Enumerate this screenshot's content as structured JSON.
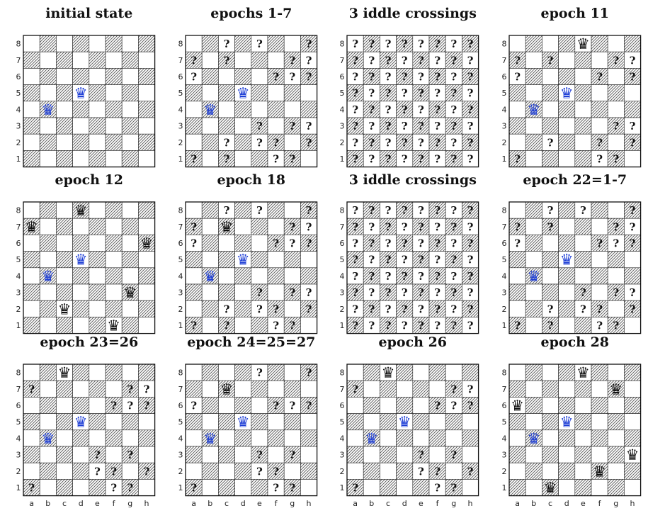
{
  "colors": {
    "given_queen": "#1f3fd6",
    "placed_queen": "#111111",
    "dark_square_hatch": "#555555",
    "border": "#111111"
  },
  "files": [
    "a",
    "b",
    "c",
    "d",
    "e",
    "f",
    "g",
    "h"
  ],
  "ranks": [
    "1",
    "2",
    "3",
    "4",
    "5",
    "6",
    "7",
    "8"
  ],
  "queen_glyph": "♛",
  "question_glyph": "?",
  "given_queens": [
    "b4",
    "d5"
  ],
  "panels": [
    {
      "title": "initial state",
      "placed_queens": [],
      "unknown": [],
      "all_unknown": false
    },
    {
      "title": "epochs 1-7",
      "placed_queens": [],
      "unknown": [
        "c8",
        "e8",
        "h8",
        "a7",
        "c7",
        "g7",
        "h7",
        "a6",
        "f6",
        "g6",
        "h6",
        "e3",
        "g3",
        "h3",
        "c2",
        "e2",
        "f2",
        "h2",
        "a1",
        "c1",
        "f1",
        "g1"
      ],
      "all_unknown": false
    },
    {
      "title": "3 iddle crossings",
      "placed_queens": [],
      "unknown": [],
      "all_unknown": true
    },
    {
      "title": "epoch 11",
      "placed_queens": [
        "e8"
      ],
      "unknown": [
        "a7",
        "c7",
        "g7",
        "h7",
        "a6",
        "f6",
        "h6",
        "g3",
        "h3",
        "c2",
        "f2",
        "h2",
        "a1",
        "f1",
        "g1"
      ],
      "all_unknown": false
    },
    {
      "title": "epoch 12",
      "placed_queens": [
        "d8",
        "a7",
        "h6",
        "g3",
        "c2",
        "f1"
      ],
      "unknown": [],
      "all_unknown": false
    },
    {
      "title": "epoch 18",
      "placed_queens": [
        "c7"
      ],
      "unknown": [
        "c8",
        "e8",
        "h8",
        "a7",
        "g7",
        "h7",
        "a6",
        "f6",
        "g6",
        "h6",
        "e3",
        "g3",
        "h3",
        "c2",
        "e2",
        "f2",
        "h2",
        "a1",
        "c1",
        "f1",
        "g1"
      ],
      "all_unknown": false
    },
    {
      "title": "3 iddle crossings",
      "placed_queens": [],
      "unknown": [],
      "all_unknown": true
    },
    {
      "title": "epoch 22=1-7",
      "placed_queens": [],
      "unknown": [
        "c8",
        "e8",
        "h8",
        "a7",
        "c7",
        "g7",
        "h7",
        "a6",
        "f6",
        "g6",
        "h6",
        "e3",
        "g3",
        "h3",
        "c2",
        "e2",
        "f2",
        "h2",
        "a1",
        "c1",
        "f1",
        "g1"
      ],
      "all_unknown": false
    },
    {
      "title": "epoch 23=26",
      "placed_queens": [
        "c8"
      ],
      "unknown": [
        "a7",
        "g7",
        "h7",
        "f6",
        "g6",
        "h6",
        "e3",
        "g3",
        "e2",
        "f2",
        "h2",
        "a1",
        "f1",
        "g1"
      ],
      "all_unknown": false
    },
    {
      "title": "epoch 24=25=27",
      "placed_queens": [
        "c7"
      ],
      "unknown": [
        "e8",
        "h8",
        "a6",
        "f6",
        "g6",
        "h6",
        "e3",
        "g3",
        "e2",
        "f2",
        "a1",
        "f1",
        "g1"
      ],
      "all_unknown": false
    },
    {
      "title": "epoch 26",
      "placed_queens": [
        "c8"
      ],
      "unknown": [
        "a7",
        "g7",
        "h7",
        "f6",
        "g6",
        "h6",
        "e3",
        "g3",
        "e2",
        "f2",
        "h2",
        "a1",
        "f1",
        "g1"
      ],
      "all_unknown": false
    },
    {
      "title": "epoch 28",
      "placed_queens": [
        "e8",
        "g7",
        "a6",
        "h3",
        "f2",
        "c1"
      ],
      "unknown": [],
      "all_unknown": false
    }
  ]
}
